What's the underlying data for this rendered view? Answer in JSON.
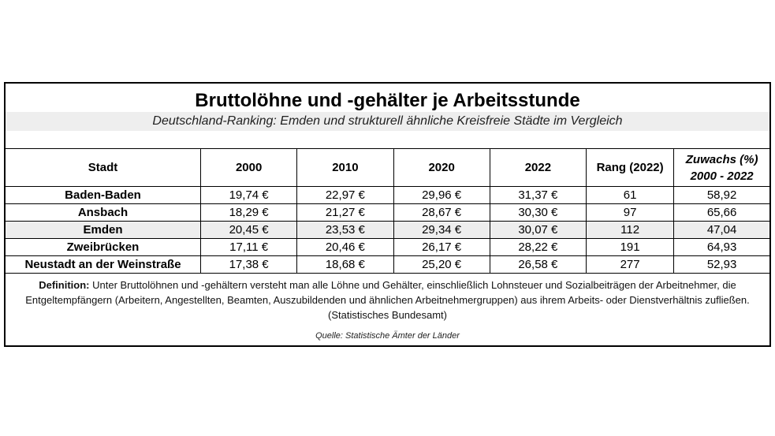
{
  "title": "Bruttolöhne und -gehälter je Arbeitsstunde",
  "subtitle": "Deutschland-Ranking: Emden und strukturell ähnliche Kreisfreie Städte im Vergleich",
  "table": {
    "headers": {
      "city": "Stadt",
      "y2000": "2000",
      "y2010": "2010",
      "y2020": "2020",
      "y2022": "2022",
      "rank": "Rang (2022)",
      "growth_line1": "Zuwachs (%)",
      "growth_line2": "2000 - 2022"
    },
    "rows": [
      {
        "city": "Baden-Baden",
        "y2000": "19,74 €",
        "y2010": "22,97 €",
        "y2020": "29,96 €",
        "y2022": "31,37 €",
        "rank": "61",
        "growth": "58,92"
      },
      {
        "city": "Ansbach",
        "y2000": "18,29 €",
        "y2010": "21,27 €",
        "y2020": "28,67 €",
        "y2022": "30,30 €",
        "rank": "97",
        "growth": "65,66"
      },
      {
        "city": "Emden",
        "y2000": "20,45 €",
        "y2010": "23,53 €",
        "y2020": "29,34 €",
        "y2022": "30,07 €",
        "rank": "112",
        "growth": "47,04"
      },
      {
        "city": "Zweibrücken",
        "y2000": "17,11 €",
        "y2010": "20,46 €",
        "y2020": "26,17 €",
        "y2022": "28,22 €",
        "rank": "191",
        "growth": "64,93"
      },
      {
        "city": "Neustadt an der Weinstraße",
        "y2000": "17,38 €",
        "y2010": "18,68 €",
        "y2020": "25,20 €",
        "y2022": "26,58 €",
        "rank": "277",
        "growth": "52,93"
      }
    ]
  },
  "definition": {
    "label": "Definition:",
    "text": " Unter Bruttolöhnen und -gehältern versteht man alle Löhne und Gehälter, einschließlich Lohnsteuer und Sozialbeiträgen der Arbeitnehmer, die Entgeltempfängern (Arbeitern, Angestellten, Beamten, Auszubildenden und ähnlichen Arbeitnehmergruppen) aus ihrem Arbeits- oder Dienstverhältnis zufließen. (Statistisches Bundesamt)"
  },
  "source": "Quelle: Statistische Ämter der Länder",
  "colors": {
    "highlight_row": "#eeeeee",
    "subtitle_background": "#eeeeee",
    "border": "#000000"
  }
}
